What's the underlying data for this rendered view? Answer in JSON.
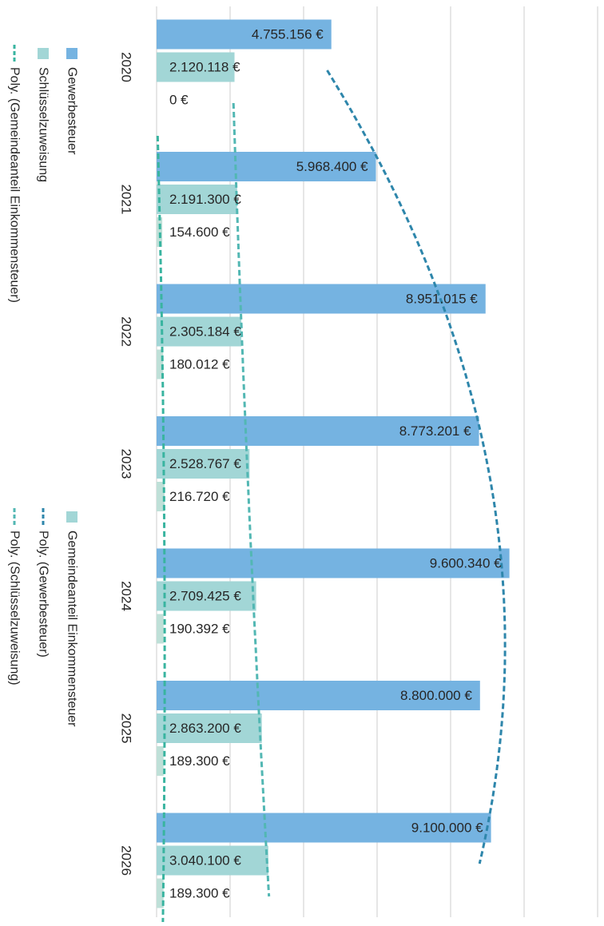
{
  "chart_data": {
    "type": "bar",
    "orientation": "horizontal",
    "categories": [
      "2020",
      "2021",
      "2022",
      "2023",
      "2024",
      "2025",
      "2026"
    ],
    "series": [
      {
        "name": "Gewerbesteuer",
        "color": "#75b3e1",
        "values": [
          4755156,
          5968400,
          8951015,
          8773201,
          9600340,
          8800000,
          9100000
        ],
        "labels": [
          "4.755.156 €",
          "5.968.400 €",
          "8.951.015 €",
          "8.773.201 €",
          "9.600.340 €",
          "8.800.000 €",
          "9.100.000 €"
        ]
      },
      {
        "name": "Schlüsselzuweisung",
        "color": "#a2d6d6",
        "values": [
          2120118,
          2191300,
          2305184,
          2528767,
          2709425,
          2863200,
          3040100
        ],
        "labels": [
          "2.120.118 €",
          "2.191.300 €",
          "2.305.184 €",
          "2.528.767 €",
          "2.709.425 €",
          "2.863.200 €",
          "3.040.100 €"
        ]
      },
      {
        "name": "Gemeindeanteil Einkommensteuer",
        "color": "#bfe0d8",
        "values": [
          0,
          154600,
          180012,
          216720,
          190392,
          189300,
          189300
        ],
        "labels": [
          "0 €",
          "154.600 €",
          "180.012 €",
          "216.720 €",
          "190.392 €",
          "189.300 €",
          "189.300 €"
        ]
      }
    ],
    "trendlines": [
      {
        "name": "Poly. (Gewerbesteuer)",
        "series": "Gewerbesteuer",
        "color": "#2e86ab",
        "dash": "dashed"
      },
      {
        "name": "Poly. (Schlüsselzuweisung)",
        "series": "Schlüsselzuweisung",
        "color": "#52b7b3",
        "dash": "dashed"
      },
      {
        "name": "Poly. (Gemeindeanteil Einkommensteuer)",
        "series": "Gemeindeanteil Einkommensteuer",
        "color": "#39b4a0",
        "dash": "dashed"
      }
    ],
    "xlim": [
      0,
      12000000
    ],
    "grid": true,
    "legend": [
      {
        "name": "Gewerbesteuer",
        "kind": "bar",
        "color": "#75b3e1"
      },
      {
        "name": "Schlüsselzuweisung",
        "kind": "bar",
        "color": "#a2d6d6"
      },
      {
        "name": "Poly. (Gemeindeanteil Einkommensteuer)",
        "kind": "line",
        "color": "#39b4a0"
      },
      {
        "name": "Gemeindeanteil Einkommensteuer",
        "kind": "bar",
        "color": "#a2d6d6"
      },
      {
        "name": "Poly. (Gewerbesteuer)",
        "kind": "line",
        "color": "#2e86ab"
      },
      {
        "name": "Poly. (Schlüsselzuweisung)",
        "kind": "line",
        "color": "#52b7b3"
      }
    ],
    "legend_placement": "left",
    "rotation": "chart rotated 90° clockwise"
  }
}
